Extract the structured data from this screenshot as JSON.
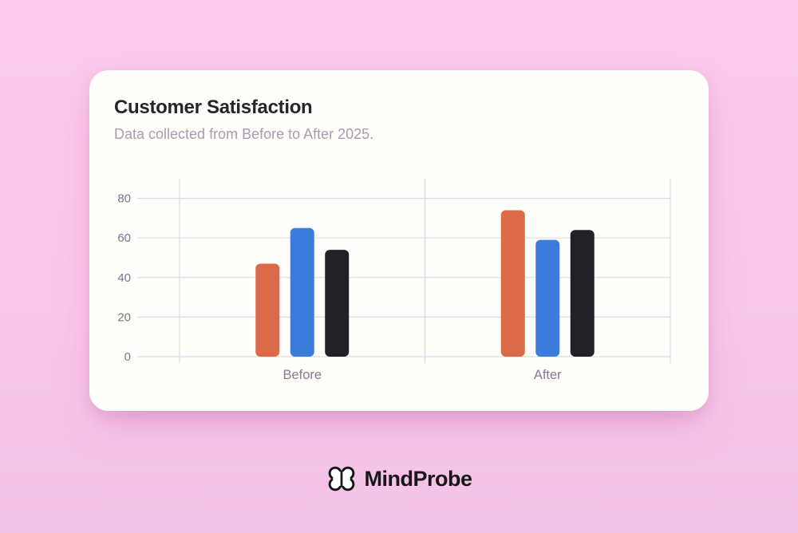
{
  "page": {
    "background_top": "#fdcaed",
    "background_bottom": "#f4c2e6"
  },
  "card": {
    "background": "#fffefa",
    "title": "Customer Satisfaction",
    "subtitle": "Data collected from Before to After 2025."
  },
  "chart_data": {
    "type": "bar",
    "title": "Customer Satisfaction",
    "subtitle": "Data collected from Before to After 2025.",
    "categories": [
      "Before",
      "After"
    ],
    "series": [
      {
        "name": "series-orange",
        "color": "#db6a49",
        "values": [
          47,
          74
        ]
      },
      {
        "name": "series-blue",
        "color": "#3b7cdd",
        "values": [
          65,
          59
        ]
      },
      {
        "name": "series-dark",
        "color": "#212127",
        "values": [
          54,
          64
        ]
      }
    ],
    "ylim": [
      0,
      80
    ],
    "yticks": [
      0,
      20,
      40,
      60,
      80
    ],
    "grid": true,
    "legend": false,
    "grid_color": "#dcdbe5",
    "tick_color": "#7b7490",
    "category_color": "#837b93"
  },
  "footer": {
    "brand": "MindProbe",
    "icon": "brain-icon"
  }
}
